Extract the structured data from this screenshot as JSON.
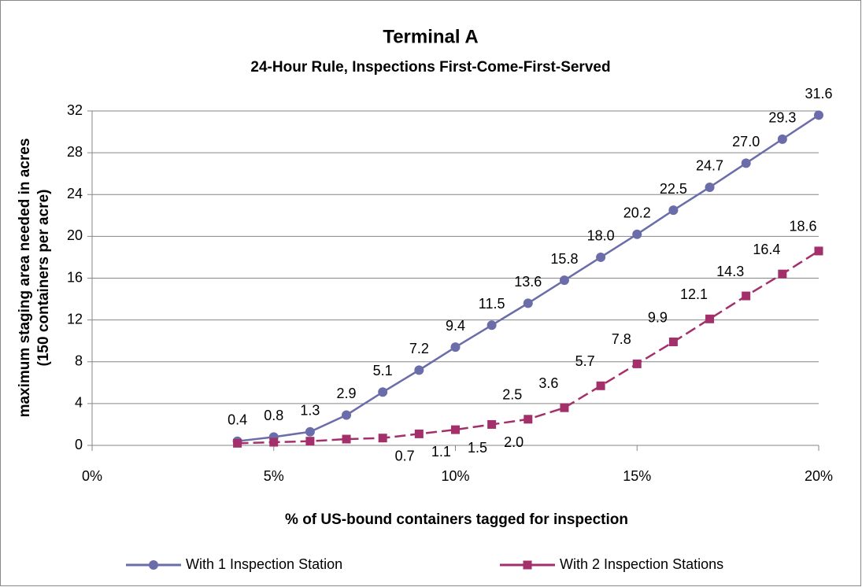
{
  "chart_data": {
    "type": "line",
    "title": "Terminal A",
    "subtitle": "24-Hour Rule, Inspections First-Come-First-Served",
    "x_label": "% of US-bound containers tagged for inspection",
    "y_label": [
      "maximum staging area needed in acres",
      "(150 containers per acre)"
    ],
    "x": [
      4,
      5,
      6,
      7,
      8,
      9,
      10,
      11,
      12,
      13,
      14,
      15,
      16,
      17,
      18,
      19,
      20
    ],
    "series": [
      {
        "name": "With 1 Inspection Station",
        "color": "#6b6daa",
        "marker": "circle",
        "dashed": false,
        "values": [
          0.4,
          0.8,
          1.3,
          2.9,
          5.1,
          7.2,
          9.4,
          11.5,
          13.6,
          15.8,
          18.0,
          20.2,
          22.5,
          24.7,
          27.0,
          29.3,
          31.6
        ],
        "value_labels": [
          "0.4",
          "0.8",
          "1.3",
          "2.9",
          "5.1",
          "7.2",
          "9.4",
          "11.5",
          "13.6",
          "15.8",
          "18.0",
          "20.2",
          "22.5",
          "24.7",
          "27.0",
          "29.3",
          "31.6"
        ]
      },
      {
        "name": "With 2 Inspection Stations",
        "color": "#a3306b",
        "marker": "square",
        "dashed": true,
        "values": [
          0.2,
          0.3,
          0.4,
          0.6,
          0.7,
          1.1,
          1.5,
          2.0,
          2.5,
          3.6,
          5.7,
          7.8,
          9.9,
          12.1,
          14.3,
          16.4,
          18.6
        ],
        "value_labels": [
          null,
          null,
          null,
          null,
          "0.7",
          "1.1",
          "1.5",
          "2.0",
          "2.5",
          "3.6",
          "5.7",
          "7.8",
          "9.9",
          "12.1",
          "14.3",
          "16.4",
          "18.6"
        ]
      }
    ],
    "xlim": [
      0,
      20
    ],
    "xticks": [
      {
        "value": 0,
        "label": "0%"
      },
      {
        "value": 5,
        "label": "5%"
      },
      {
        "value": 10,
        "label": "10%"
      },
      {
        "value": 15,
        "label": "15%"
      },
      {
        "value": 20,
        "label": "20%"
      }
    ],
    "ylim": [
      0,
      32
    ],
    "yticks": [
      0,
      4,
      8,
      12,
      16,
      20,
      24,
      28,
      32
    ],
    "grid": true,
    "legend": "bottom"
  }
}
